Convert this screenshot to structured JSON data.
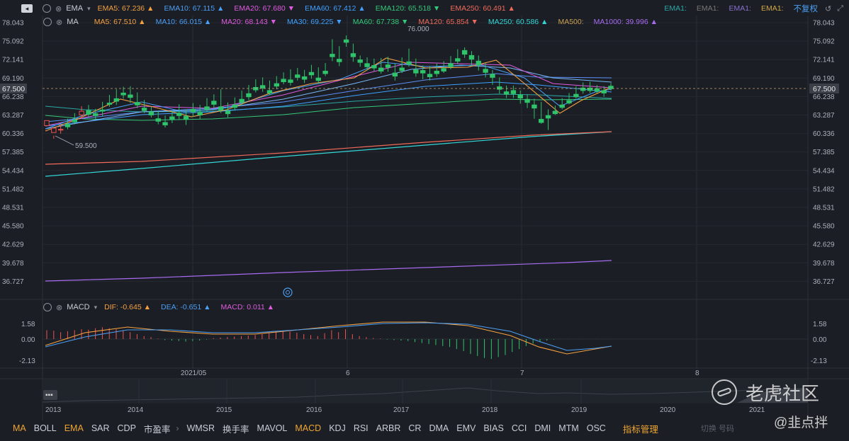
{
  "ema_bar": {
    "label": "EMA",
    "items": [
      {
        "text": "EMA5: 67.236 ▲",
        "color": "#f5a142"
      },
      {
        "text": "EMA10: 67.115 ▲",
        "color": "#4b9ff5"
      },
      {
        "text": "EMA20: 67.680 ▼",
        "color": "#e05be0"
      },
      {
        "text": "EMA60: 67.412 ▲",
        "color": "#3fa0ff"
      },
      {
        "text": "EMA120: 65.518 ▼",
        "color": "#34c87a"
      },
      {
        "text": "EMA250: 60.491 ▲",
        "color": "#f06a5a"
      }
    ],
    "right_items": [
      {
        "text": "EMA1:",
        "color": "#2ba7a7"
      },
      {
        "text": "EMA1:",
        "color": "#777777"
      },
      {
        "text": "EMA1:",
        "color": "#8a6fcf"
      },
      {
        "text": "EMA1:",
        "color": "#d4a642"
      }
    ],
    "adjust_label": "不复权"
  },
  "ma_bar": {
    "label": "MA",
    "items": [
      {
        "text": "MA5: 67.510 ▲",
        "color": "#f5a142"
      },
      {
        "text": "MA10: 66.015 ▲",
        "color": "#4b9ff5"
      },
      {
        "text": "MA20: 68.143 ▼",
        "color": "#e05be0"
      },
      {
        "text": "MA30: 69.225 ▼",
        "color": "#3fa0ff"
      },
      {
        "text": "MA60: 67.738 ▼",
        "color": "#34c87a"
      },
      {
        "text": "MA120: 65.854 ▼",
        "color": "#f06a5a"
      },
      {
        "text": "MA250: 60.586 ▲",
        "color": "#33d6d6"
      },
      {
        "text": "MA500:",
        "color": "#c9a055"
      },
      {
        "text": "MA1000: 39.996 ▲",
        "color": "#a66bf0"
      }
    ]
  },
  "macd_bar": {
    "label": "MACD",
    "items": [
      {
        "text": "DIF: -0.645 ▲",
        "color": "#f5a142"
      },
      {
        "text": "DEA: -0.651 ▲",
        "color": "#4b9ff5"
      },
      {
        "text": "MACD: 0.011 ▲",
        "color": "#e05be0"
      }
    ]
  },
  "price_axis": {
    "left": [
      "78.043",
      "75.092",
      "72.141",
      "69.190",
      "66.238",
      "63.287",
      "60.336",
      "57.385",
      "54.434",
      "51.482",
      "48.531",
      "45.580",
      "42.629",
      "39.678",
      "36.727"
    ],
    "right": [
      "78.043",
      "75.092",
      "72.141",
      "69.190",
      "66.238",
      "63.287",
      "60.336",
      "57.385",
      "54.434",
      "51.482",
      "48.531",
      "45.580",
      "42.629",
      "39.678",
      "36.727"
    ],
    "current_price": "67.500",
    "high_annotation": "76.000",
    "low_annotation": "59.500"
  },
  "macd_axis": {
    "labels": [
      "1.58",
      "0.00",
      "-2.13"
    ]
  },
  "time_axis": {
    "labels": [
      "2021/05",
      "6",
      "7",
      "8"
    ]
  },
  "overview_axis": {
    "labels": [
      "2013",
      "2014",
      "2015",
      "2016",
      "2017",
      "2018",
      "2019",
      "2020",
      "2021"
    ]
  },
  "indicator_tabs": [
    {
      "label": "MA",
      "active": true
    },
    {
      "label": "BOLL",
      "active": false
    },
    {
      "label": "EMA",
      "active": true
    },
    {
      "label": "SAR",
      "active": false
    },
    {
      "label": "CDP",
      "active": false
    },
    {
      "label": "市盈率",
      "active": false
    },
    {
      "label": "WMSR",
      "active": false
    },
    {
      "label": "换手率",
      "active": false
    },
    {
      "label": "MAVOL",
      "active": false
    },
    {
      "label": "MACD",
      "active": true
    },
    {
      "label": "KDJ",
      "active": false
    },
    {
      "label": "RSI",
      "active": false
    },
    {
      "label": "ARBR",
      "active": false
    },
    {
      "label": "CR",
      "active": false
    },
    {
      "label": "DMA",
      "active": false
    },
    {
      "label": "EMV",
      "active": false
    },
    {
      "label": "BIAS",
      "active": false
    },
    {
      "label": "CCI",
      "active": false
    },
    {
      "label": "DMI",
      "active": false
    },
    {
      "label": "MTM",
      "active": false
    },
    {
      "label": "OSC",
      "active": false
    }
  ],
  "indicator_manage_label": "指标管理",
  "watermark": {
    "brand": "老虎社区",
    "user": "@韭点拌",
    "faint": "切换 号码"
  },
  "chart_data": {
    "type": "candlestick",
    "ylim": [
      35.5,
      79.5
    ],
    "x_labels": [
      "2021/05",
      "6",
      "7",
      "8"
    ],
    "candles": [
      [
        61.6,
        62.4,
        60.9,
        60.7
      ],
      [
        60.5,
        61.2,
        60.0,
        59.5
      ],
      [
        61.0,
        61.0,
        61.9,
        60.3
      ],
      [
        61.8,
        61.4,
        62.7,
        61.0
      ],
      [
        62.5,
        62.2,
        63.6,
        61.8
      ],
      [
        63.3,
        63.9,
        64.7,
        62.9
      ],
      [
        64.0,
        63.4,
        64.9,
        63.0
      ],
      [
        63.5,
        63.2,
        64.3,
        62.6
      ],
      [
        64.1,
        63.9,
        65.4,
        63.1
      ],
      [
        65.2,
        65.0,
        66.5,
        64.6
      ],
      [
        65.9,
        65.5,
        67.4,
        64.9
      ],
      [
        66.8,
        66.5,
        67.8,
        65.9
      ],
      [
        66.5,
        66.1,
        67.9,
        65.2
      ],
      [
        65.3,
        64.9,
        66.9,
        64.4
      ],
      [
        64.4,
        64.0,
        65.7,
        63.6
      ],
      [
        63.8,
        63.3,
        64.6,
        62.9
      ],
      [
        62.7,
        62.3,
        63.9,
        61.8
      ],
      [
        62.1,
        61.7,
        63.2,
        61.3
      ],
      [
        63.0,
        62.6,
        64.0,
        62.0
      ],
      [
        63.6,
        63.2,
        65.0,
        62.5
      ],
      [
        63.1,
        62.6,
        64.2,
        61.7
      ],
      [
        64.2,
        63.8,
        65.2,
        63.0
      ],
      [
        63.7,
        63.3,
        64.9,
        62.6
      ],
      [
        64.6,
        64.2,
        66.0,
        63.8
      ],
      [
        65.5,
        65.0,
        66.6,
        64.4
      ],
      [
        64.6,
        64.1,
        67.4,
        63.6
      ],
      [
        63.9,
        63.5,
        65.3,
        62.9
      ],
      [
        64.9,
        64.5,
        66.1,
        64.0
      ],
      [
        65.8,
        65.3,
        67.2,
        64.8
      ],
      [
        66.7,
        66.2,
        68.1,
        65.7
      ],
      [
        67.7,
        67.3,
        69.0,
        66.9
      ],
      [
        68.0,
        67.6,
        69.3,
        67.0
      ],
      [
        67.2,
        66.8,
        68.8,
        66.5
      ],
      [
        68.3,
        67.9,
        69.5,
        67.4
      ],
      [
        69.0,
        68.6,
        70.1,
        68.2
      ],
      [
        68.9,
        68.5,
        70.6,
        68.0
      ],
      [
        69.7,
        69.3,
        70.8,
        68.8
      ],
      [
        69.4,
        69.0,
        70.5,
        68.4
      ],
      [
        70.1,
        69.7,
        71.3,
        69.1
      ],
      [
        69.2,
        68.8,
        70.9,
        68.3
      ],
      [
        70.3,
        69.9,
        71.6,
        69.5
      ],
      [
        73.0,
        72.6,
        75.4,
        71.9
      ],
      [
        72.2,
        71.8,
        74.3,
        71.1
      ],
      [
        75.3,
        74.9,
        76.0,
        74.2
      ],
      [
        73.1,
        72.6,
        74.7,
        71.8
      ],
      [
        72.1,
        71.7,
        72.8,
        71.0
      ],
      [
        71.5,
        71.0,
        72.5,
        70.4
      ],
      [
        71.2,
        70.8,
        72.3,
        70.3
      ],
      [
        70.8,
        70.3,
        72.4,
        69.9
      ],
      [
        71.3,
        70.9,
        72.6,
        70.2
      ],
      [
        70.0,
        69.5,
        71.5,
        68.8
      ],
      [
        70.8,
        70.4,
        72.5,
        70.0
      ],
      [
        71.8,
        71.4,
        73.9,
        71.0
      ],
      [
        70.5,
        70.0,
        72.3,
        69.4
      ],
      [
        70.4,
        70.0,
        71.2,
        69.0
      ],
      [
        69.8,
        69.4,
        71.1,
        68.8
      ],
      [
        70.3,
        69.9,
        71.5,
        69.4
      ],
      [
        70.7,
        70.3,
        71.9,
        70.0
      ],
      [
        71.5,
        71.0,
        72.7,
        70.6
      ],
      [
        72.3,
        71.9,
        73.8,
        71.5
      ],
      [
        73.6,
        73.0,
        74.1,
        72.4
      ],
      [
        72.8,
        72.2,
        73.5,
        71.1
      ],
      [
        71.9,
        71.3,
        72.8,
        70.4
      ],
      [
        70.6,
        70.1,
        71.6,
        69.3
      ],
      [
        69.8,
        69.3,
        70.5,
        68.1
      ],
      [
        67.8,
        67.4,
        69.3,
        66.7
      ],
      [
        67.0,
        66.6,
        68.0,
        66.0
      ],
      [
        67.2,
        66.7,
        68.0,
        66.0
      ],
      [
        66.5,
        66.0,
        67.2,
        65.1
      ],
      [
        65.8,
        65.3,
        66.6,
        64.4
      ],
      [
        64.9,
        64.4,
        65.9,
        62.7
      ],
      [
        62.6,
        62.1,
        65.4,
        61.9
      ],
      [
        63.2,
        62.8,
        64.2,
        60.9
      ],
      [
        63.9,
        63.5,
        64.8,
        63.3
      ],
      [
        64.9,
        64.5,
        66.0,
        64.2
      ],
      [
        65.6,
        65.2,
        66.8,
        65.0
      ],
      [
        66.6,
        66.2,
        67.9,
        65.9
      ],
      [
        67.6,
        67.2,
        68.5,
        66.7
      ],
      [
        67.6,
        67.2,
        68.6,
        66.8
      ],
      [
        67.5,
        67.1,
        68.1,
        66.8
      ],
      [
        67.2,
        66.8,
        67.9,
        66.2
      ],
      [
        67.9,
        67.5,
        68.4,
        67.2
      ]
    ],
    "macd_hist": [
      0.9,
      0.85,
      0.7,
      0.8,
      0.9,
      1.0,
      0.95,
      1.1,
      1.2,
      1.1,
      1.0,
      0.9,
      0.7,
      0.5,
      0.3,
      0.2,
      0.05,
      -0.1,
      -0.15,
      -0.2,
      -0.25,
      -0.2,
      -0.15,
      -0.05,
      0.1,
      0.15,
      0.2,
      0.25,
      0.3,
      0.35,
      0.4,
      0.5,
      0.6,
      0.7,
      0.8,
      0.75,
      0.65,
      0.5,
      0.4,
      0.3,
      0.6,
      0.9,
      0.7,
      1.0,
      0.5,
      0.3,
      0.2,
      0.1,
      0.05,
      -0.05,
      -0.1,
      -0.15,
      -0.2,
      -0.3,
      -0.4,
      -0.5,
      -0.6,
      -0.7,
      -0.8,
      -1.0,
      -1.2,
      -1.5,
      -1.7,
      -1.9,
      -2.0,
      -1.8,
      -1.6,
      -1.3,
      -1.0,
      -0.7,
      -0.45,
      -0.3,
      -0.15,
      -0.05,
      0.01,
      0.01,
      0.0,
      0.01,
      0.0,
      0.01,
      0.01,
      0.01
    ],
    "macd_ylim": [
      -2.13,
      1.58
    ]
  }
}
